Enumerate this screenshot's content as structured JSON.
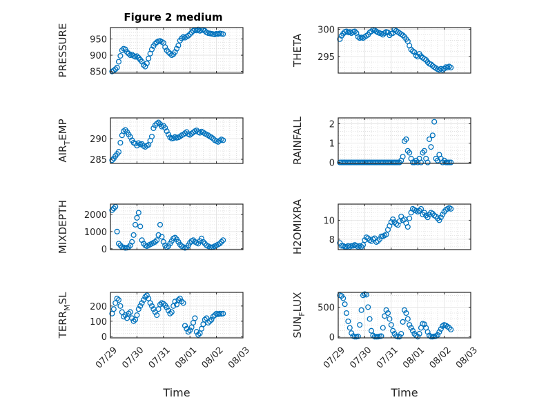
{
  "figure": {
    "title": "Figure 2 medium"
  },
  "chart_data": [
    {
      "type": "scatter",
      "ylabel": "PRESSURE",
      "ylim": [
        845,
        985
      ],
      "yticks": [
        850,
        900,
        950
      ],
      "grid": true,
      "marker": "o",
      "color": "#0072bd",
      "x": [
        0.05,
        0.1,
        0.15,
        0.2,
        0.25,
        0.3,
        0.35,
        0.4,
        0.45,
        0.5,
        0.55,
        0.6,
        0.65,
        0.7,
        0.75,
        0.8,
        0.85,
        0.9,
        0.95,
        1.0,
        1.05,
        1.1,
        1.15,
        1.2,
        1.25,
        1.3,
        1.35,
        1.4,
        1.45,
        1.5,
        1.55,
        1.6,
        1.65,
        1.7,
        1.75,
        1.8,
        1.85,
        1.9,
        1.95,
        2.0,
        2.05,
        2.1,
        2.15,
        2.2,
        2.25,
        2.3,
        2.35,
        2.4,
        2.45,
        2.5,
        2.55,
        2.6,
        2.65,
        2.7,
        2.75,
        2.8,
        2.85,
        2.9,
        2.95,
        3.0,
        3.05,
        3.1,
        3.15,
        3.2,
        3.25,
        3.3,
        3.35,
        3.4
      ],
      "y": [
        850,
        853,
        857,
        862,
        880,
        898,
        915,
        920,
        918,
        910,
        905,
        900,
        902,
        898,
        895,
        897,
        892,
        886,
        880,
        870,
        865,
        875,
        890,
        905,
        918,
        928,
        935,
        940,
        943,
        944,
        941,
        938,
        925,
        915,
        910,
        905,
        900,
        903,
        910,
        920,
        930,
        945,
        952,
        956,
        954,
        957,
        960,
        965,
        970,
        975,
        978,
        976,
        979,
        975,
        977,
        978,
        975,
        970,
        968,
        967,
        966,
        965,
        964,
        966,
        965,
        967,
        966,
        965
      ]
    },
    {
      "type": "scatter",
      "ylabel": "THETA",
      "ylim": [
        292,
        300.3
      ],
      "yticks": [
        295,
        300
      ],
      "grid": true,
      "marker": "o",
      "color": "#0072bd",
      "x": [
        0.05,
        0.1,
        0.15,
        0.2,
        0.25,
        0.3,
        0.35,
        0.4,
        0.45,
        0.5,
        0.55,
        0.6,
        0.65,
        0.7,
        0.75,
        0.8,
        0.85,
        0.9,
        0.95,
        1.0,
        1.05,
        1.1,
        1.15,
        1.2,
        1.25,
        1.3,
        1.35,
        1.4,
        1.45,
        1.5,
        1.55,
        1.6,
        1.65,
        1.7,
        1.75,
        1.8,
        1.85,
        1.9,
        1.95,
        2.0,
        2.05,
        2.1,
        2.15,
        2.2,
        2.25,
        2.3,
        2.35,
        2.4,
        2.45,
        2.5,
        2.55,
        2.6,
        2.65,
        2.7,
        2.75,
        2.8,
        2.85,
        2.9,
        2.95,
        3.0,
        3.05,
        3.1,
        3.15,
        3.2,
        3.25,
        3.3,
        3.35,
        3.4
      ],
      "y": [
        298.2,
        298.8,
        299.2,
        299.5,
        299.6,
        299.4,
        299.5,
        299.3,
        299.5,
        299.6,
        299.3,
        298.6,
        298.4,
        298.5,
        298.4,
        298.6,
        298.8,
        299.0,
        299.4,
        299.6,
        299.9,
        299.8,
        299.6,
        299.4,
        299.3,
        299.2,
        299.0,
        299.3,
        299.5,
        299.4,
        298.9,
        299.2,
        299.3,
        299.9,
        299.7,
        299.5,
        299.3,
        299.1,
        298.9,
        298.6,
        298.2,
        297.8,
        297.0,
        296.3,
        296.0,
        295.8,
        295.2,
        295.0,
        295.5,
        295.1,
        294.8,
        294.6,
        294.4,
        294.0,
        293.7,
        293.6,
        293.3,
        293.1,
        292.9,
        292.7,
        292.6,
        292.8,
        292.6,
        292.8,
        293.1,
        293.0,
        293.2,
        293.0
      ]
    },
    {
      "type": "scatter",
      "ylabel": "AIR_TEMP",
      "ylim": [
        284,
        295
      ],
      "yticks": [
        285,
        290
      ],
      "grid": true,
      "marker": "o",
      "color": "#0072bd",
      "x": [
        0.05,
        0.1,
        0.15,
        0.2,
        0.25,
        0.3,
        0.35,
        0.4,
        0.45,
        0.5,
        0.55,
        0.6,
        0.65,
        0.7,
        0.75,
        0.8,
        0.85,
        0.9,
        0.95,
        1.0,
        1.05,
        1.1,
        1.15,
        1.2,
        1.25,
        1.3,
        1.35,
        1.4,
        1.45,
        1.5,
        1.55,
        1.6,
        1.65,
        1.7,
        1.75,
        1.8,
        1.85,
        1.9,
        1.95,
        2.0,
        2.05,
        2.1,
        2.15,
        2.2,
        2.25,
        2.3,
        2.35,
        2.4,
        2.45,
        2.5,
        2.55,
        2.6,
        2.65,
        2.7,
        2.75,
        2.8,
        2.85,
        2.9,
        2.95,
        3.0,
        3.05,
        3.1,
        3.15,
        3.2,
        3.25,
        3.3,
        3.35,
        3.4
      ],
      "y": [
        284.8,
        285.2,
        285.8,
        286.3,
        286.8,
        289.0,
        290.8,
        291.8,
        292.1,
        291.6,
        291.0,
        290.4,
        289.6,
        289.0,
        288.8,
        288.3,
        288.9,
        288.6,
        288.7,
        288.2,
        288.0,
        288.3,
        288.5,
        289.5,
        290.5,
        292.5,
        293.2,
        293.6,
        293.9,
        293.5,
        292.9,
        293.1,
        292.6,
        291.8,
        291.0,
        290.3,
        290.0,
        290.1,
        290.4,
        290.2,
        290.3,
        290.5,
        290.8,
        291.0,
        291.3,
        291.6,
        291.1,
        290.9,
        291.2,
        291.5,
        291.8,
        292.0,
        291.6,
        291.4,
        291.7,
        291.5,
        291.2,
        291.0,
        290.8,
        290.5,
        290.3,
        290.0,
        289.6,
        289.4,
        289.2,
        289.5,
        289.8,
        289.6
      ]
    },
    {
      "type": "scatter",
      "ylabel": "RAINFALL",
      "ylim": [
        -0.05,
        2.3
      ],
      "yticks": [
        0,
        1,
        2
      ],
      "grid": true,
      "marker": "o",
      "color": "#0072bd",
      "x": [
        0.05,
        0.1,
        0.15,
        0.2,
        0.25,
        0.3,
        0.35,
        0.4,
        0.45,
        0.5,
        0.55,
        0.6,
        0.65,
        0.7,
        0.75,
        0.8,
        0.85,
        0.9,
        0.95,
        1.0,
        1.05,
        1.1,
        1.15,
        1.2,
        1.25,
        1.3,
        1.35,
        1.4,
        1.45,
        1.5,
        1.55,
        1.6,
        1.65,
        1.7,
        1.75,
        1.8,
        1.85,
        1.9,
        1.95,
        2.0,
        2.05,
        2.1,
        2.15,
        2.2,
        2.25,
        2.3,
        2.35,
        2.4,
        2.45,
        2.5,
        2.55,
        2.6,
        2.65,
        2.7,
        2.75,
        2.8,
        2.85,
        2.9,
        2.95,
        3.0,
        3.05,
        3.1,
        3.15,
        3.2,
        3.25,
        3.3,
        3.35,
        3.4
      ],
      "y": [
        0,
        0,
        0,
        0,
        0,
        0,
        0,
        0,
        0,
        0,
        0,
        0,
        0,
        0,
        0,
        0,
        0,
        0,
        0,
        0,
        0,
        0,
        0,
        0,
        0,
        0,
        0,
        0,
        0,
        0,
        0,
        0,
        0,
        0,
        0,
        0,
        0,
        0.1,
        0.3,
        1.1,
        1.2,
        0.6,
        0.5,
        0.2,
        0,
        0,
        0.1,
        0,
        0.2,
        0,
        0.5,
        0.6,
        0.2,
        0,
        1.2,
        0.8,
        1.4,
        2.1,
        0.2,
        0.1,
        0.4,
        0.2,
        0,
        0.1,
        0,
        0,
        0,
        0
      ]
    },
    {
      "type": "scatter",
      "ylabel": "MIXDEPTH",
      "ylim": [
        -50,
        2600
      ],
      "yticks": [
        0,
        1000,
        2000
      ],
      "grid": true,
      "marker": "o",
      "color": "#0072bd",
      "x": [
        0.05,
        0.1,
        0.15,
        0.2,
        0.25,
        0.3,
        0.35,
        0.4,
        0.45,
        0.5,
        0.55,
        0.6,
        0.65,
        0.7,
        0.75,
        0.8,
        0.85,
        0.9,
        0.95,
        1.0,
        1.05,
        1.1,
        1.15,
        1.2,
        1.25,
        1.3,
        1.35,
        1.4,
        1.45,
        1.5,
        1.55,
        1.6,
        1.65,
        1.7,
        1.75,
        1.8,
        1.85,
        1.9,
        1.95,
        2.0,
        2.05,
        2.1,
        2.15,
        2.2,
        2.25,
        2.3,
        2.35,
        2.4,
        2.45,
        2.5,
        2.55,
        2.6,
        2.65,
        2.7,
        2.75,
        2.8,
        2.85,
        2.9,
        2.95,
        3.0,
        3.05,
        3.1,
        3.15,
        3.2,
        3.25,
        3.3,
        3.35,
        3.4
      ],
      "y": [
        2250,
        2350,
        2450,
        1000,
        300,
        200,
        100,
        80,
        50,
        60,
        100,
        200,
        400,
        800,
        1400,
        1800,
        2100,
        1300,
        500,
        300,
        200,
        150,
        200,
        250,
        300,
        350,
        400,
        500,
        800,
        1400,
        700,
        400,
        200,
        100,
        150,
        300,
        450,
        600,
        650,
        550,
        400,
        250,
        150,
        100,
        50,
        80,
        200,
        350,
        450,
        500,
        400,
        350,
        300,
        450,
        600,
        400,
        300,
        200,
        150,
        100,
        80,
        100,
        150,
        200,
        250,
        300,
        400,
        500
      ]
    },
    {
      "type": "scatter",
      "ylabel": "H2OMIXRA",
      "ylim": [
        6.9,
        11.7
      ],
      "yticks": [
        8,
        10
      ],
      "grid": true,
      "marker": "o",
      "color": "#0072bd",
      "x": [
        0.05,
        0.1,
        0.15,
        0.2,
        0.25,
        0.3,
        0.35,
        0.4,
        0.45,
        0.5,
        0.55,
        0.6,
        0.65,
        0.7,
        0.75,
        0.8,
        0.85,
        0.9,
        0.95,
        1.0,
        1.05,
        1.1,
        1.15,
        1.2,
        1.25,
        1.3,
        1.35,
        1.4,
        1.45,
        1.5,
        1.55,
        1.6,
        1.65,
        1.7,
        1.75,
        1.8,
        1.85,
        1.9,
        1.95,
        2.0,
        2.05,
        2.1,
        2.15,
        2.2,
        2.25,
        2.3,
        2.35,
        2.4,
        2.45,
        2.5,
        2.55,
        2.6,
        2.65,
        2.7,
        2.75,
        2.8,
        2.85,
        2.9,
        2.95,
        3.0,
        3.05,
        3.1,
        3.15,
        3.2,
        3.25,
        3.3,
        3.35,
        3.4
      ],
      "y": [
        7.6,
        7.3,
        7.3,
        7.2,
        7.2,
        7.3,
        7.2,
        7.3,
        7.3,
        7.4,
        7.3,
        7.2,
        7.3,
        7.2,
        7.4,
        7.9,
        8.2,
        8.1,
        7.9,
        7.8,
        8.0,
        8.1,
        7.7,
        7.8,
        8.0,
        8.3,
        8.3,
        8.4,
        8.5,
        9.0,
        9.4,
        9.8,
        10.1,
        9.8,
        9.6,
        9.5,
        9.9,
        10.4,
        10.0,
        10.1,
        9.7,
        9.3,
        10.2,
        10.8,
        11.2,
        11.1,
        11.0,
        10.9,
        11.0,
        11.2,
        10.6,
        10.8,
        10.5,
        10.3,
        10.6,
        10.8,
        10.7,
        10.5,
        10.4,
        10.2,
        10.0,
        10.3,
        10.6,
        10.9,
        11.1,
        11.2,
        11.3,
        11.2
      ]
    },
    {
      "type": "scatter",
      "ylabel": "TERR_MSL",
      "ylim": [
        -10,
        290
      ],
      "yticks": [
        0,
        100,
        200
      ],
      "grid": true,
      "marker": "o",
      "color": "#0072bd",
      "x": [
        0.05,
        0.1,
        0.15,
        0.2,
        0.25,
        0.3,
        0.35,
        0.4,
        0.45,
        0.5,
        0.55,
        0.6,
        0.65,
        0.7,
        0.75,
        0.8,
        0.85,
        0.9,
        0.95,
        1.0,
        1.05,
        1.1,
        1.15,
        1.2,
        1.25,
        1.3,
        1.35,
        1.4,
        1.45,
        1.5,
        1.55,
        1.6,
        1.65,
        1.7,
        1.75,
        1.8,
        1.85,
        1.9,
        1.95,
        2.0,
        2.05,
        2.1,
        2.15,
        2.2,
        2.25,
        2.3,
        2.35,
        2.4,
        2.45,
        2.5,
        2.55,
        2.6,
        2.65,
        2.7,
        2.75,
        2.8,
        2.85,
        2.9,
        2.95,
        3.0,
        3.05,
        3.1,
        3.15,
        3.2,
        3.25,
        3.3,
        3.35,
        3.4
      ],
      "y": [
        150,
        180,
        220,
        250,
        240,
        200,
        160,
        130,
        140,
        120,
        150,
        160,
        120,
        100,
        110,
        140,
        180,
        200,
        220,
        240,
        260,
        270,
        250,
        220,
        200,
        180,
        160,
        140,
        180,
        210,
        220,
        215,
        205,
        190,
        170,
        150,
        160,
        200,
        230,
        210,
        240,
        250,
        230,
        220,
        70,
        50,
        30,
        40,
        60,
        90,
        120,
        30,
        10,
        20,
        50,
        80,
        110,
        120,
        90,
        100,
        110,
        130,
        140,
        150,
        145,
        150,
        148,
        150
      ]
    },
    {
      "type": "scatter",
      "ylabel": "SUN_FLUX",
      "ylim": [
        -20,
        750
      ],
      "yticks": [
        0,
        500
      ],
      "grid": true,
      "marker": "o",
      "color": "#0072bd",
      "x": [
        0.05,
        0.1,
        0.15,
        0.2,
        0.25,
        0.3,
        0.35,
        0.4,
        0.45,
        0.5,
        0.55,
        0.6,
        0.65,
        0.7,
        0.75,
        0.8,
        0.85,
        0.9,
        0.95,
        1.0,
        1.05,
        1.1,
        1.15,
        1.2,
        1.25,
        1.3,
        1.35,
        1.4,
        1.45,
        1.5,
        1.55,
        1.6,
        1.65,
        1.7,
        1.75,
        1.8,
        1.85,
        1.9,
        1.95,
        2.0,
        2.05,
        2.1,
        2.15,
        2.2,
        2.25,
        2.3,
        2.35,
        2.4,
        2.45,
        2.5,
        2.55,
        2.6,
        2.65,
        2.7,
        2.75,
        2.8,
        2.85,
        2.9,
        2.95,
        3.0,
        3.05,
        3.1,
        3.15,
        3.2,
        3.25,
        3.3,
        3.35,
        3.4
      ],
      "y": [
        700,
        690,
        650,
        550,
        400,
        260,
        150,
        60,
        10,
        0,
        0,
        5,
        200,
        450,
        700,
        720,
        710,
        500,
        300,
        100,
        20,
        0,
        0,
        0,
        5,
        10,
        150,
        350,
        450,
        400,
        300,
        200,
        100,
        50,
        10,
        0,
        0,
        50,
        250,
        450,
        400,
        300,
        200,
        150,
        100,
        50,
        20,
        0,
        50,
        150,
        220,
        210,
        150,
        80,
        20,
        0,
        0,
        5,
        10,
        30,
        80,
        130,
        180,
        200,
        190,
        170,
        150,
        120
      ]
    }
  ],
  "axes_shared": {
    "xlim": [
      0,
      4
    ],
    "xticklabels": [
      "07/29",
      "07/30",
      "07/31",
      "08/01",
      "08/02",
      "08/03"
    ],
    "xticks": [
      0,
      0.8,
      1.6,
      2.4,
      3.2,
      4.0
    ],
    "xlabel": "Time"
  }
}
